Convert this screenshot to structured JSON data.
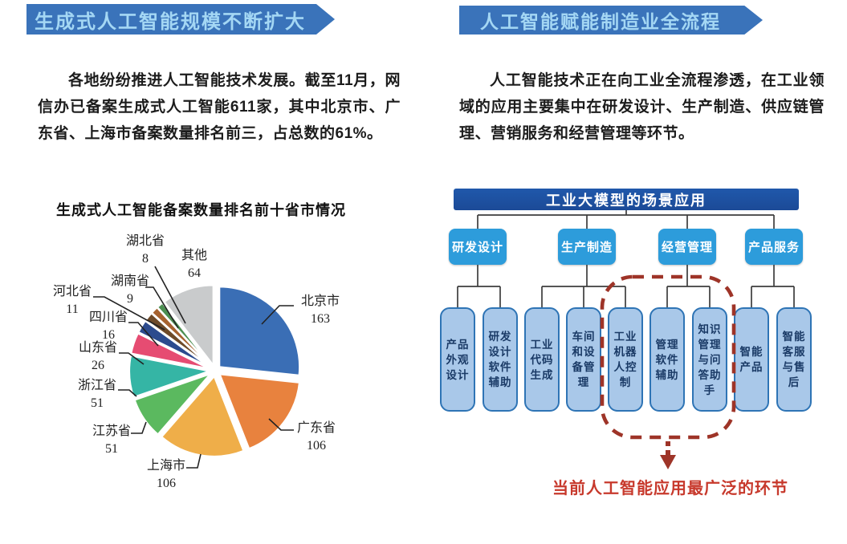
{
  "left": {
    "banner": "生成式人工智能规模不断扩大",
    "paragraph": "各地纷纷推进人工智能技术发展。截至11月，网信办已备案生成式人工智能611家，其中北京市、广东省、上海市备案数量排名前三，占总数的61%。",
    "chart_title": "生成式人工智能备案数量排名前十省市情况"
  },
  "chart_data": {
    "type": "pie",
    "title": "生成式人工智能备案数量排名前十省市情况",
    "categories": [
      "北京市",
      "广东省",
      "上海市",
      "江苏省",
      "浙江省",
      "山东省",
      "四川省",
      "河北省",
      "湖南省",
      "湖北省",
      "其他"
    ],
    "values": [
      163,
      106,
      106,
      51,
      51,
      26,
      16,
      11,
      9,
      8,
      64
    ],
    "total": 611,
    "colors": [
      "#3A6EB5",
      "#E8823E",
      "#EFAE49",
      "#5BB95F",
      "#35B5A5",
      "#E64C72",
      "#2C4B8E",
      "#6E4A28",
      "#A6622F",
      "#4C8F51",
      "#C9CBCC"
    ],
    "start_angle_deg": -90,
    "direction": "clockwise",
    "labels_show_value": true,
    "legend_position": "none",
    "grid": false
  },
  "right": {
    "banner": "人工智能赋能制造业全流程",
    "paragraph": "人工智能技术正在向工业全流程渗透，在工业领域的应用主要集中在研发设计、生产制造、供应链管理、营销服务和经营管理等环节。",
    "diagram": {
      "title": "工业大模型的场景应用",
      "branches": [
        {
          "label": "研发设计",
          "children": [
            "产品外观设计",
            "研发设计软件辅助"
          ]
        },
        {
          "label": "生产制造",
          "children": [
            "工业代码生成",
            "车间和设备管理",
            "工业机器人控制"
          ]
        },
        {
          "label": "经营管理",
          "children": [
            "管理软件辅助",
            "知识管理与问答助手"
          ]
        },
        {
          "label": "产品服务",
          "children": [
            "智能产品",
            "智能客服与售后"
          ]
        }
      ],
      "highlight": {
        "items": [
          "工业机器人控制",
          "管理软件辅助",
          "知识管理与问答助手"
        ],
        "color": "#9E3428"
      },
      "caption": "当前人工智能应用最广泛的环节",
      "caption_color": "#C7392C"
    }
  },
  "theme": {
    "banner_bg": "#3A73BA",
    "banner_text": "#A4D7F4",
    "diagram_header_bg": "#1B4A97",
    "branch_bg": "#2D9CDB",
    "leaf_bg": "#A9C8E9",
    "leaf_border": "#2E74B5",
    "leaf_text": "#1A3A66",
    "connector": "#3D3D3D"
  }
}
